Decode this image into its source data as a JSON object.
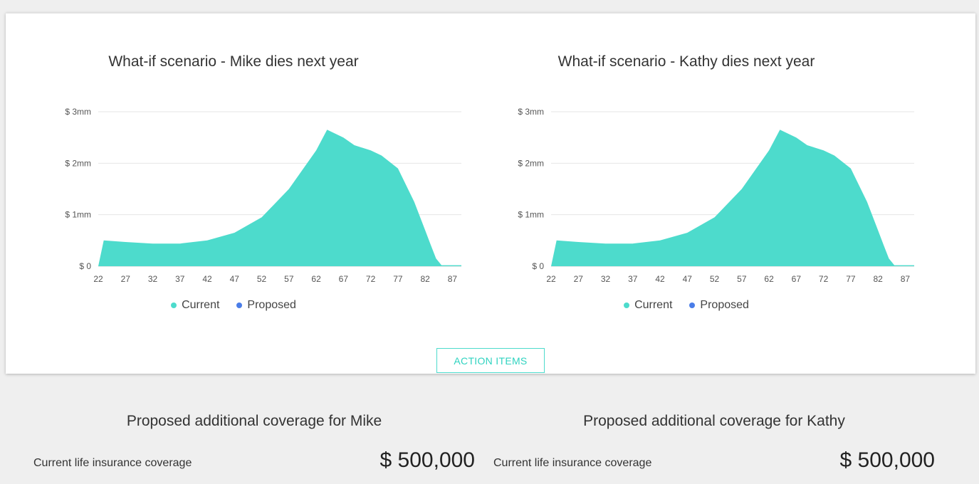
{
  "charts": [
    {
      "title": "What-if scenario - Mike dies next year",
      "y_ticks": [
        "$ 3mm",
        "$ 2mm",
        "$ 1mm",
        "$ 0"
      ],
      "x_ticks": [
        "22",
        "27",
        "32",
        "37",
        "42",
        "47",
        "52",
        "57",
        "62",
        "67",
        "72",
        "77",
        "82",
        "87"
      ],
      "legend": [
        {
          "label": "Current",
          "color": "#4ddbcc"
        },
        {
          "label": "Proposed",
          "color": "#4a7de8"
        }
      ]
    },
    {
      "title": "What-if scenario - Kathy dies next year",
      "y_ticks": [
        "$ 3mm",
        "$ 2mm",
        "$ 1mm",
        "$ 0"
      ],
      "x_ticks": [
        "22",
        "27",
        "32",
        "37",
        "42",
        "47",
        "52",
        "57",
        "62",
        "67",
        "72",
        "77",
        "82",
        "87"
      ],
      "legend": [
        {
          "label": "Current",
          "color": "#4ddbcc"
        },
        {
          "label": "Proposed",
          "color": "#4a7de8"
        }
      ]
    }
  ],
  "chart_data": [
    {
      "type": "area",
      "title": "What-if scenario - Mike dies next year",
      "xlabel": "",
      "ylabel": "",
      "x_range": [
        22,
        91
      ],
      "ylim": [
        0,
        3000000
      ],
      "series": [
        {
          "name": "Current",
          "color": "#4ddbcc",
          "x": [
            22,
            23,
            27,
            32,
            37,
            42,
            47,
            52,
            57,
            62,
            64,
            67,
            69,
            72,
            74,
            77,
            80,
            82,
            83,
            84,
            85,
            87,
            91
          ],
          "values": [
            0,
            500000,
            470000,
            440000,
            440000,
            500000,
            650000,
            950000,
            1500000,
            2250000,
            2650000,
            2500000,
            2350000,
            2250000,
            2150000,
            1900000,
            1250000,
            700000,
            420000,
            150000,
            20000,
            20000,
            20000
          ]
        },
        {
          "name": "Proposed",
          "color": "#4a7de8",
          "x": [],
          "values": []
        }
      ],
      "grid": true,
      "legend": "bottom"
    },
    {
      "type": "area",
      "title": "What-if scenario - Kathy dies next year",
      "xlabel": "",
      "ylabel": "",
      "x_range": [
        22,
        91
      ],
      "ylim": [
        0,
        3000000
      ],
      "series": [
        {
          "name": "Current",
          "color": "#4ddbcc",
          "x": [
            22,
            23,
            27,
            32,
            37,
            42,
            47,
            52,
            57,
            62,
            64,
            67,
            69,
            72,
            74,
            77,
            80,
            82,
            83,
            84,
            85,
            87,
            91
          ],
          "values": [
            0,
            500000,
            470000,
            440000,
            440000,
            500000,
            650000,
            950000,
            1500000,
            2250000,
            2650000,
            2500000,
            2350000,
            2250000,
            2150000,
            1900000,
            1250000,
            700000,
            420000,
            150000,
            20000,
            20000,
            20000
          ]
        },
        {
          "name": "Proposed",
          "color": "#4a7de8",
          "x": [],
          "values": []
        }
      ],
      "grid": true,
      "legend": "bottom"
    }
  ],
  "action_button": {
    "label": "ACTION ITEMS"
  },
  "coverage": [
    {
      "title": "Proposed additional coverage for Mike",
      "label": "Current life insurance coverage",
      "value": "$ 500,000"
    },
    {
      "title": "Proposed additional coverage for Kathy",
      "label": "Current life insurance coverage",
      "value": "$ 500,000"
    }
  ]
}
